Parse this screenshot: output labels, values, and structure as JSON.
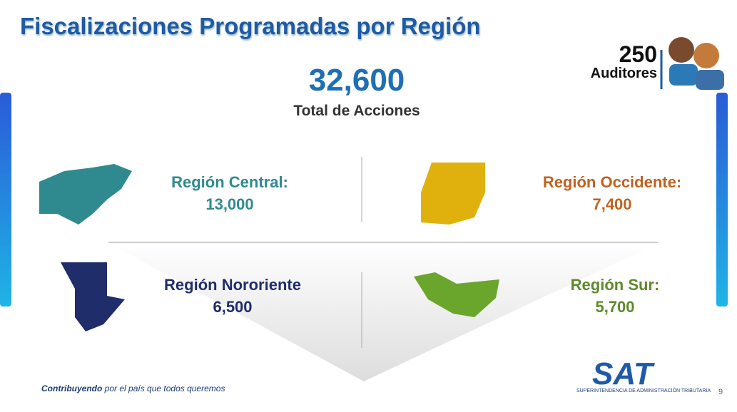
{
  "header": {
    "title": "Fiscalizaciones Programadas por Región"
  },
  "total": {
    "value": "32,600",
    "label": "Total de Acciones"
  },
  "auditors": {
    "value": "250",
    "label": "Auditores"
  },
  "regions": [
    {
      "name": "Región Central:",
      "value": "13,000",
      "color": "#2f8a8f"
    },
    {
      "name": "Región Occidente:",
      "value": "7,400",
      "color": "#c0621f"
    },
    {
      "name": "Región Nororiente",
      "value": "6,500",
      "color": "#1f2e6b"
    },
    {
      "name": "Región Sur:",
      "value": "5,700",
      "color": "#5d8a2c"
    }
  ],
  "footer": {
    "slogan_bold": "Contribuyendo",
    "slogan_rest": "por el país que todos queremos",
    "logo": "SAT",
    "logo_subtitle": "Superintendencia de Administración Tributaria",
    "page": "9"
  }
}
